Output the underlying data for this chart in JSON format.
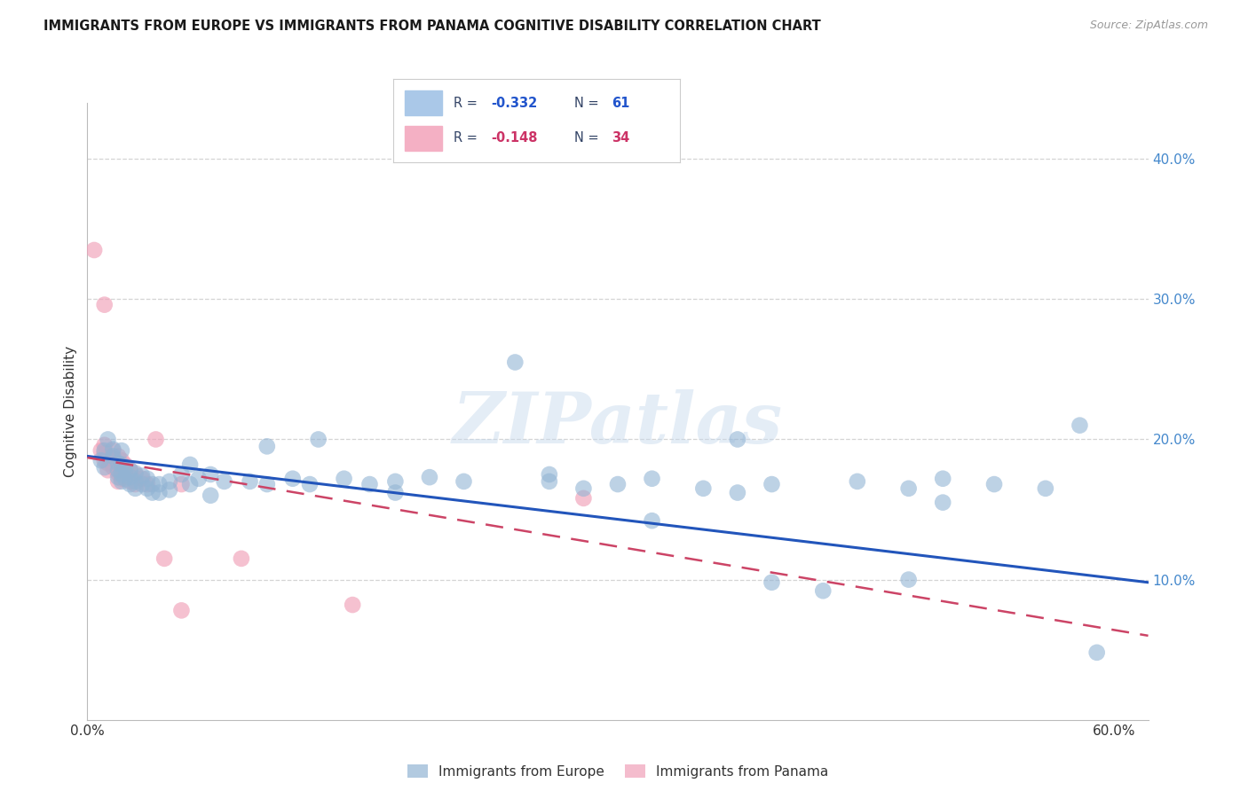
{
  "title": "IMMIGRANTS FROM EUROPE VS IMMIGRANTS FROM PANAMA COGNITIVE DISABILITY CORRELATION CHART",
  "source": "Source: ZipAtlas.com",
  "ylabel": "Cognitive Disability",
  "xlim": [
    0.0,
    0.62
  ],
  "ylim": [
    0.0,
    0.44
  ],
  "xtick_positions": [
    0.0,
    0.1,
    0.2,
    0.3,
    0.4,
    0.5,
    0.6
  ],
  "xtick_labels": [
    "0.0%",
    "",
    "",
    "",
    "",
    "",
    "60.0%"
  ],
  "ytick_right_positions": [
    0.1,
    0.2,
    0.3,
    0.4
  ],
  "ytick_right_labels": [
    "10.0%",
    "20.0%",
    "30.0%",
    "40.0%"
  ],
  "europe_scatter": [
    [
      0.008,
      0.185
    ],
    [
      0.01,
      0.192
    ],
    [
      0.01,
      0.18
    ],
    [
      0.012,
      0.2
    ],
    [
      0.015,
      0.193
    ],
    [
      0.015,
      0.188
    ],
    [
      0.018,
      0.183
    ],
    [
      0.018,
      0.178
    ],
    [
      0.018,
      0.173
    ],
    [
      0.02,
      0.192
    ],
    [
      0.02,
      0.182
    ],
    [
      0.02,
      0.175
    ],
    [
      0.02,
      0.17
    ],
    [
      0.022,
      0.18
    ],
    [
      0.022,
      0.172
    ],
    [
      0.025,
      0.178
    ],
    [
      0.025,
      0.173
    ],
    [
      0.025,
      0.168
    ],
    [
      0.028,
      0.176
    ],
    [
      0.028,
      0.17
    ],
    [
      0.028,
      0.165
    ],
    [
      0.032,
      0.174
    ],
    [
      0.032,
      0.168
    ],
    [
      0.035,
      0.172
    ],
    [
      0.035,
      0.165
    ],
    [
      0.038,
      0.168
    ],
    [
      0.038,
      0.162
    ],
    [
      0.042,
      0.168
    ],
    [
      0.042,
      0.162
    ],
    [
      0.048,
      0.17
    ],
    [
      0.048,
      0.164
    ],
    [
      0.055,
      0.175
    ],
    [
      0.06,
      0.182
    ],
    [
      0.06,
      0.168
    ],
    [
      0.065,
      0.172
    ],
    [
      0.072,
      0.175
    ],
    [
      0.072,
      0.16
    ],
    [
      0.08,
      0.17
    ],
    [
      0.095,
      0.17
    ],
    [
      0.105,
      0.195
    ],
    [
      0.105,
      0.168
    ],
    [
      0.12,
      0.172
    ],
    [
      0.13,
      0.168
    ],
    [
      0.135,
      0.2
    ],
    [
      0.15,
      0.172
    ],
    [
      0.165,
      0.168
    ],
    [
      0.18,
      0.17
    ],
    [
      0.18,
      0.162
    ],
    [
      0.2,
      0.173
    ],
    [
      0.22,
      0.17
    ],
    [
      0.25,
      0.255
    ],
    [
      0.27,
      0.175
    ],
    [
      0.27,
      0.17
    ],
    [
      0.29,
      0.165
    ],
    [
      0.31,
      0.168
    ],
    [
      0.33,
      0.172
    ],
    [
      0.33,
      0.142
    ],
    [
      0.36,
      0.165
    ],
    [
      0.38,
      0.2
    ],
    [
      0.38,
      0.162
    ],
    [
      0.4,
      0.168
    ],
    [
      0.4,
      0.098
    ],
    [
      0.43,
      0.092
    ],
    [
      0.45,
      0.17
    ],
    [
      0.48,
      0.165
    ],
    [
      0.48,
      0.1
    ],
    [
      0.5,
      0.172
    ],
    [
      0.5,
      0.155
    ],
    [
      0.53,
      0.168
    ],
    [
      0.56,
      0.165
    ],
    [
      0.58,
      0.21
    ],
    [
      0.59,
      0.048
    ]
  ],
  "panama_scatter": [
    [
      0.004,
      0.335
    ],
    [
      0.01,
      0.296
    ],
    [
      0.008,
      0.192
    ],
    [
      0.01,
      0.196
    ],
    [
      0.01,
      0.19
    ],
    [
      0.01,
      0.185
    ],
    [
      0.012,
      0.188
    ],
    [
      0.012,
      0.183
    ],
    [
      0.012,
      0.178
    ],
    [
      0.015,
      0.192
    ],
    [
      0.015,
      0.186
    ],
    [
      0.015,
      0.18
    ],
    [
      0.018,
      0.188
    ],
    [
      0.018,
      0.182
    ],
    [
      0.018,
      0.176
    ],
    [
      0.018,
      0.17
    ],
    [
      0.02,
      0.185
    ],
    [
      0.02,
      0.178
    ],
    [
      0.02,
      0.172
    ],
    [
      0.022,
      0.182
    ],
    [
      0.022,
      0.175
    ],
    [
      0.025,
      0.178
    ],
    [
      0.025,
      0.17
    ],
    [
      0.028,
      0.175
    ],
    [
      0.028,
      0.168
    ],
    [
      0.032,
      0.172
    ],
    [
      0.035,
      0.168
    ],
    [
      0.04,
      0.2
    ],
    [
      0.045,
      0.115
    ],
    [
      0.055,
      0.168
    ],
    [
      0.055,
      0.078
    ],
    [
      0.09,
      0.115
    ],
    [
      0.155,
      0.082
    ],
    [
      0.29,
      0.158
    ]
  ],
  "europe_line_x": [
    0.0,
    0.62
  ],
  "europe_line_y": [
    0.188,
    0.098
  ],
  "panama_line_x": [
    0.0,
    0.62
  ],
  "panama_line_y": [
    0.187,
    0.06
  ],
  "europe_color": "#92b4d4",
  "panama_color": "#f0a0b8",
  "europe_line_color": "#2255bb",
  "panama_line_color": "#cc4466",
  "bg_color": "#ffffff",
  "watermark_text": "ZIPatlas",
  "grid_color": "#d0d0d0",
  "legend_blue_box": "#aac8e8",
  "legend_pink_box": "#f4b0c4",
  "legend_text_blue": "#2255cc",
  "legend_text_pink": "#cc3366",
  "legend_text_dark": "#334466"
}
